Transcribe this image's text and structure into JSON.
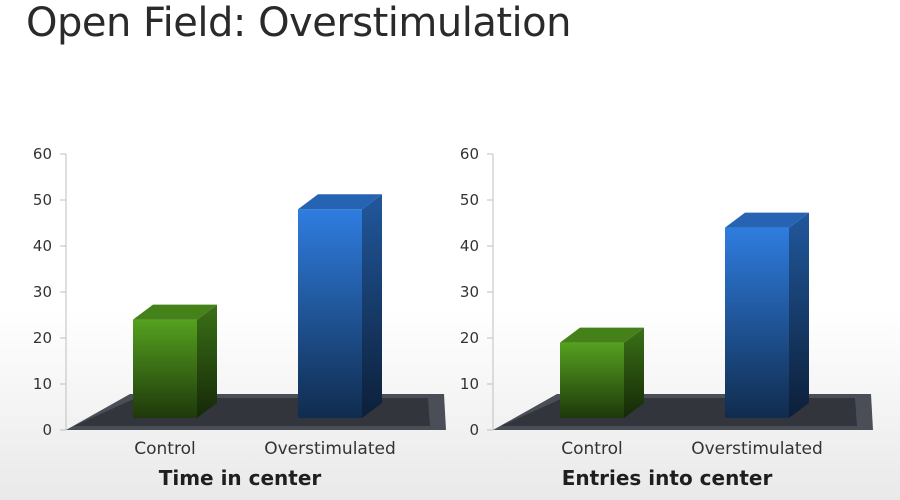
{
  "slide": {
    "title": "Open Field: Overstimulation"
  },
  "chart_data": [
    {
      "type": "bar",
      "categories": [
        "Control",
        "Overstimulated"
      ],
      "values": [
        24,
        48
      ],
      "xlabel": "Time in center",
      "ylabel": "",
      "ylim": [
        0,
        60
      ],
      "yticks": [
        0,
        10,
        20,
        30,
        40,
        50,
        60
      ],
      "colors": [
        "#55a11f",
        "#2f7de0"
      ]
    },
    {
      "type": "bar",
      "categories": [
        "Control",
        "Overstimulated"
      ],
      "values": [
        19,
        44
      ],
      "xlabel": "Entries into center",
      "ylabel": "",
      "ylim": [
        0,
        60
      ],
      "yticks": [
        0,
        10,
        20,
        30,
        40,
        50,
        60
      ],
      "colors": [
        "#55a11f",
        "#2f7de0"
      ]
    }
  ]
}
